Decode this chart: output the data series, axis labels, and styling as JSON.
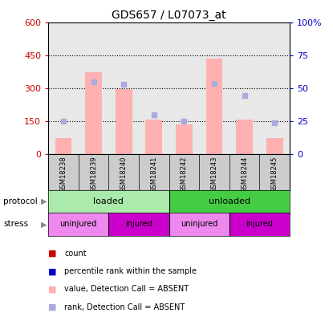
{
  "title": "GDS657 / L07073_at",
  "samples": [
    "GSM18238",
    "GSM18239",
    "GSM18240",
    "GSM18241",
    "GSM18242",
    "GSM18243",
    "GSM18244",
    "GSM18245"
  ],
  "bar_values": [
    75,
    375,
    297,
    157,
    135,
    435,
    160,
    75
  ],
  "rank_values": [
    25,
    55,
    53,
    30,
    25,
    54,
    45,
    24
  ],
  "ylim_left": [
    0,
    600
  ],
  "ylim_right": [
    0,
    100
  ],
  "yticks_left": [
    0,
    150,
    300,
    450,
    600
  ],
  "yticks_right": [
    0,
    25,
    50,
    75,
    100
  ],
  "ytick_labels_left": [
    "0",
    "150",
    "300",
    "450",
    "600"
  ],
  "ytick_labels_right": [
    "0",
    "25",
    "50",
    "75",
    "100%"
  ],
  "bar_color": "#FFB0B0",
  "rank_color": "#AAAADD",
  "count_color": "#CC0000",
  "percentile_color": "#0000CC",
  "protocol_loaded_color": "#AAEAAA",
  "protocol_unloaded_color": "#44CC44",
  "stress_uninjured_color": "#EE88EE",
  "stress_injured_color": "#CC00CC",
  "bg_color": "#FFFFFF",
  "left_tick_color": "#CC0000",
  "right_tick_color": "#0000CC",
  "facecolor": "#E8E8E8",
  "legend_items": [
    {
      "color": "#CC0000",
      "label": "count"
    },
    {
      "color": "#0000CC",
      "label": "percentile rank within the sample"
    },
    {
      "color": "#FFB0B0",
      "label": "value, Detection Call = ABSENT"
    },
    {
      "color": "#AAAADD",
      "label": "rank, Detection Call = ABSENT"
    }
  ]
}
